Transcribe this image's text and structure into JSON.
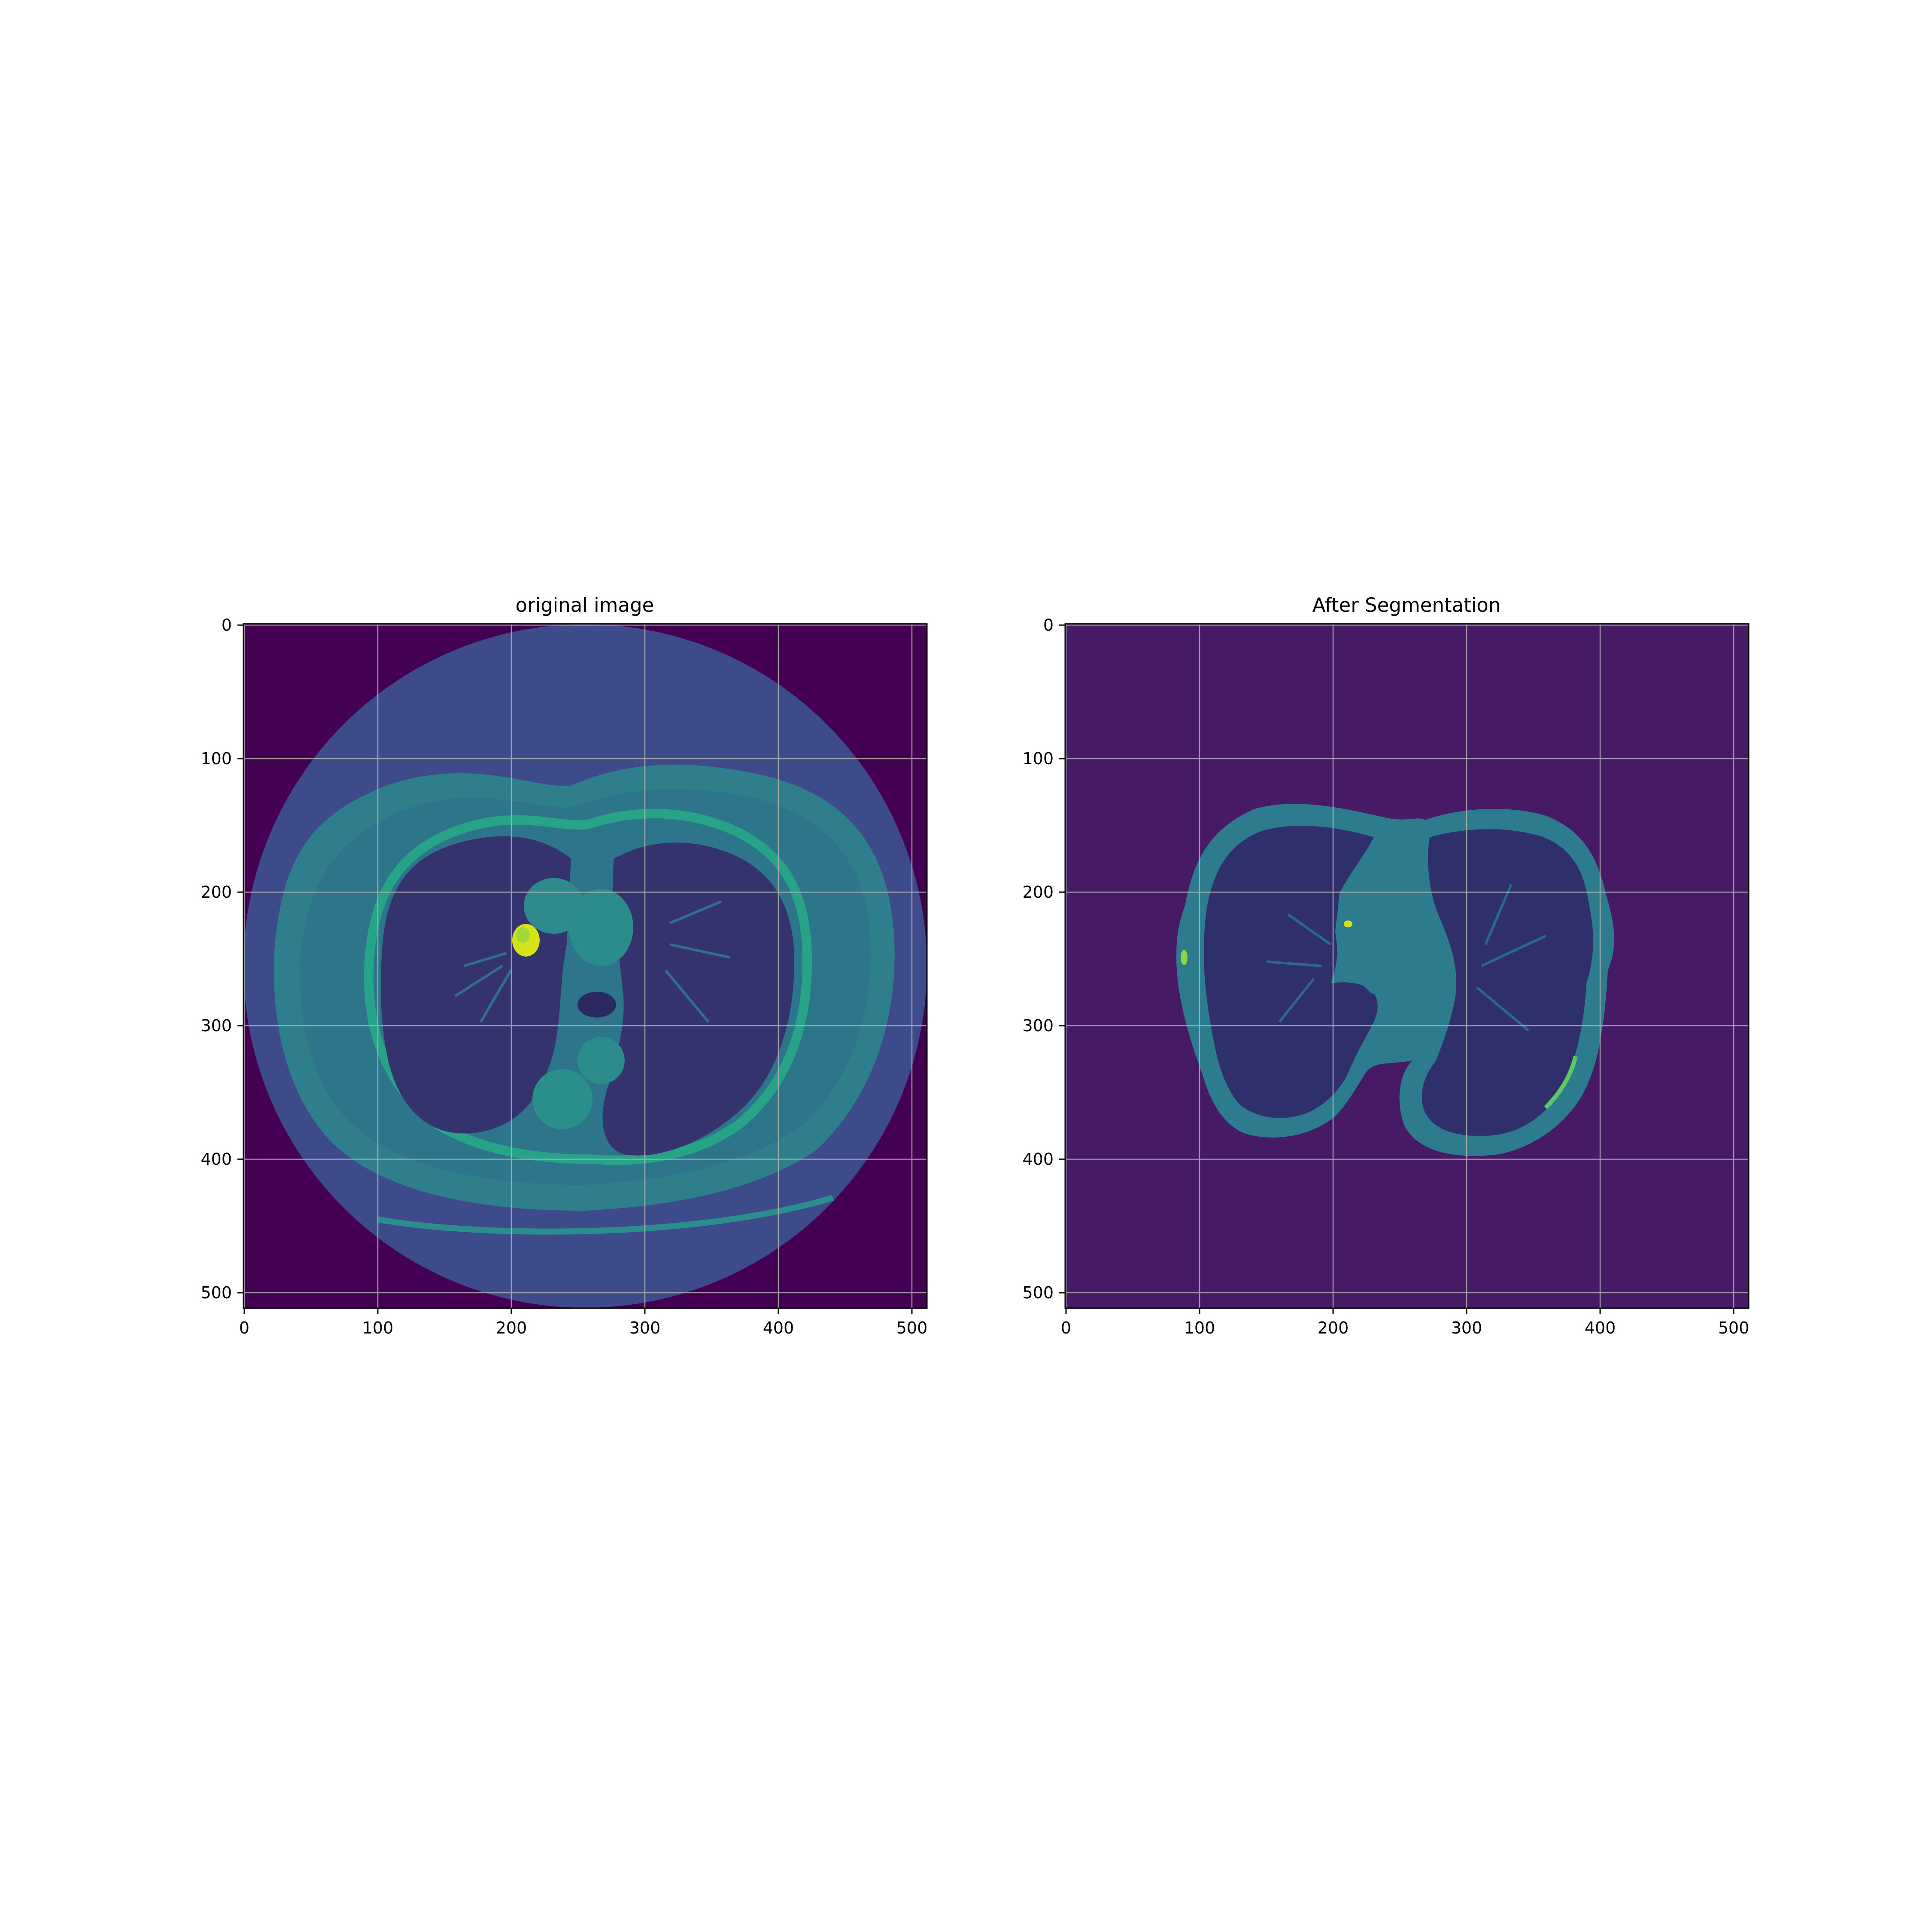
{
  "figure": {
    "panels": [
      {
        "title": "original image",
        "x_ticks": [
          "0",
          "100",
          "200",
          "300",
          "400",
          "500"
        ],
        "y_ticks": [
          "0",
          "100",
          "200",
          "300",
          "400",
          "500"
        ],
        "colormap": "viridis",
        "grid": true
      },
      {
        "title": "After Segmentation",
        "x_ticks": [
          "0",
          "100",
          "200",
          "300",
          "400",
          "500"
        ],
        "y_ticks": [
          "0",
          "100",
          "200",
          "300",
          "400",
          "500"
        ],
        "colormap": "viridis",
        "grid": true
      }
    ]
  },
  "colors": {
    "viridis_dark": "#440154",
    "viridis_bg_seg": "#471A66",
    "body_fill": "#3E4B8A",
    "soft_tissue": "#2E8A8C",
    "lung": "#35336E",
    "bright": "#D8E219",
    "grid": "#B0B0B0"
  }
}
